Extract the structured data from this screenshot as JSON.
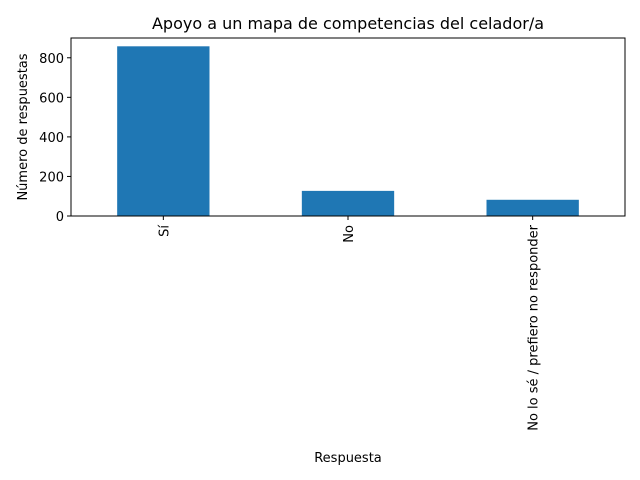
{
  "chart_data": {
    "type": "bar",
    "title": "Apoyo a un mapa de competencias del celador/a",
    "xlabel": "Respuesta",
    "ylabel": "Número de respuestas",
    "categories": [
      "Sí",
      "No",
      "No lo sé / prefiero no responder"
    ],
    "values": [
      858,
      127,
      82
    ],
    "ylim": [
      0,
      900
    ],
    "yticks": [
      0,
      200,
      400,
      600,
      800
    ],
    "ytick_labels": [
      "0",
      "200",
      "400",
      "600",
      "800"
    ],
    "grid": false,
    "legend": "none",
    "colors": {
      "bar": "#1f77b4"
    }
  }
}
